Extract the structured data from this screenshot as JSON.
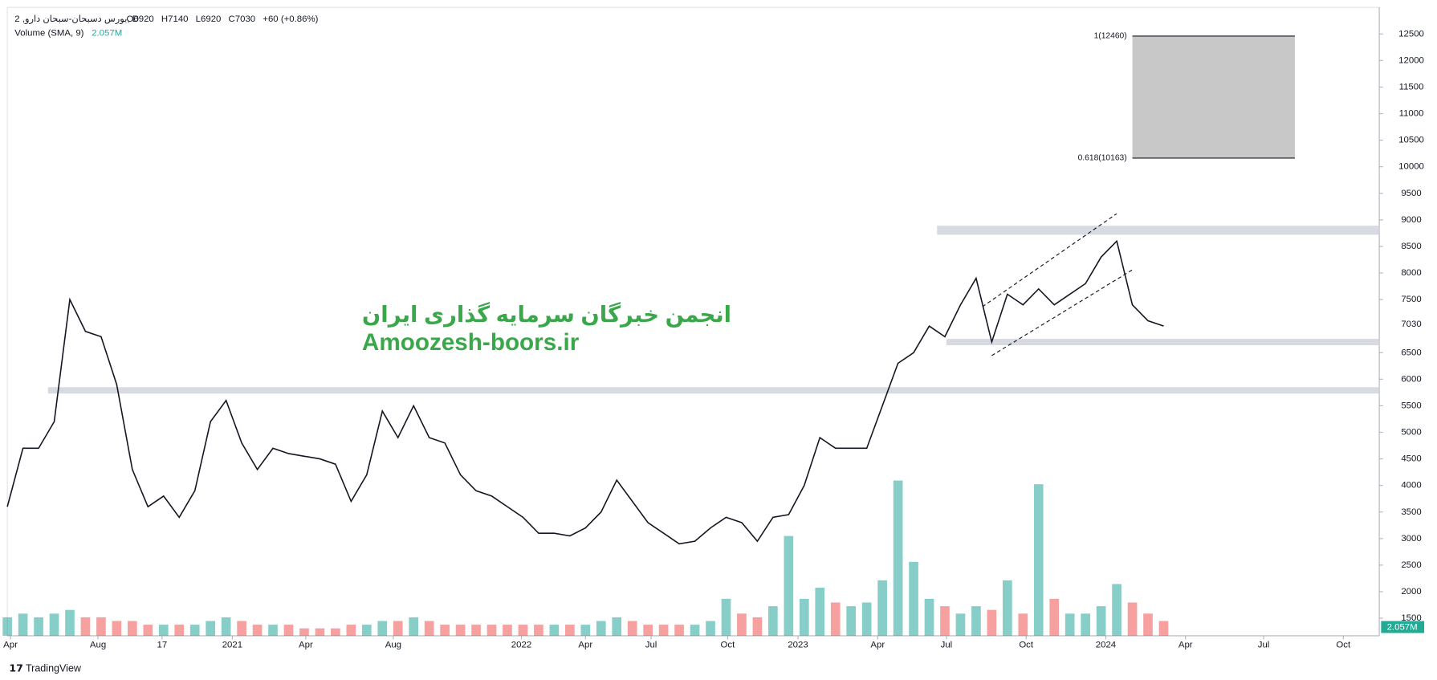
{
  "chart_data": {
    "type": "line",
    "symbol": "بورس دسبحان-سبحان دارو, 2, D",
    "ohlc": [
      "O6920",
      "H7140",
      "L6920",
      "C7030",
      "+60 (+0.86%)"
    ],
    "volume_title": "Volume (SMA, 9)",
    "volume_label": "2.057M",
    "watermark": [
      "انجمن خبرگان سرمایه گذاری ایران",
      "Amoozesh-boors.ir"
    ],
    "brand": "TradingView",
    "color": "#131722",
    "values": [
      3600,
      4700,
      4700,
      5200,
      7500,
      6900,
      6800,
      5900,
      4300,
      3600,
      3800,
      3400,
      3900,
      5200,
      5600,
      4800,
      4300,
      4700,
      4600,
      4550,
      4500,
      4400,
      3700,
      4200,
      5400,
      4900,
      5500,
      4900,
      4800,
      4200,
      3900,
      3800,
      3600,
      3400,
      3100,
      3100,
      3050,
      3200,
      3500,
      4100,
      3700,
      3300,
      3100,
      2900,
      2950,
      3200,
      3400,
      3300,
      2950,
      3400,
      3450,
      4000,
      4900,
      4700,
      4700,
      4700,
      5500,
      6300,
      6500,
      7000,
      6800,
      7400,
      7900,
      6700,
      7600,
      7400,
      7700,
      7400,
      7600,
      7800,
      8300,
      8600,
      7400,
      7100,
      7000
    ],
    "volume": [
      0.5,
      0.6,
      0.5,
      0.6,
      0.7,
      0.5,
      0.5,
      0.4,
      0.4,
      0.3,
      0.3,
      0.3,
      0.3,
      0.4,
      0.5,
      0.4,
      0.3,
      0.3,
      0.3,
      0.2,
      0.2,
      0.2,
      0.3,
      0.3,
      0.4,
      0.4,
      0.5,
      0.4,
      0.3,
      0.3,
      0.3,
      0.3,
      0.3,
      0.3,
      0.3,
      0.3,
      0.3,
      0.3,
      0.4,
      0.5,
      0.4,
      0.3,
      0.3,
      0.3,
      0.3,
      0.4,
      1.0,
      0.6,
      0.5,
      0.8,
      2.7,
      1.0,
      1.3,
      0.9,
      0.8,
      0.9,
      1.5,
      4.2,
      2.0,
      1.0,
      0.8,
      0.6,
      0.8,
      0.7,
      1.5,
      0.6,
      4.1,
      1.0,
      0.6,
      0.6,
      0.8,
      1.4,
      0.9,
      0.6,
      0.4
    ],
    "volume_ylim": [
      0,
      17
    ],
    "up_color": "#26a69a",
    "down_color": "#ef5350",
    "xlim": [
      0,
      87.8
    ],
    "xticks": [
      {
        "value": 0.2,
        "label": "Apr"
      },
      {
        "value": 5.8,
        "label": "Aug"
      },
      {
        "value": 9.9,
        "label": "17"
      },
      {
        "value": 14.4,
        "label": "2021"
      },
      {
        "value": 19.1,
        "label": "Apr"
      },
      {
        "value": 24.7,
        "label": "Aug"
      },
      {
        "value": 32.9,
        "label": "2022"
      },
      {
        "value": 37.0,
        "label": "Apr"
      },
      {
        "value": 41.2,
        "label": "Jul"
      },
      {
        "value": 46.1,
        "label": "Oct"
      },
      {
        "value": 50.6,
        "label": "2023"
      },
      {
        "value": 55.7,
        "label": "Apr"
      },
      {
        "value": 60.1,
        "label": "Jul"
      },
      {
        "value": 65.2,
        "label": "Oct"
      },
      {
        "value": 70.3,
        "label": "2024"
      },
      {
        "value": 75.4,
        "label": "Apr"
      },
      {
        "value": 80.4,
        "label": "Jul"
      },
      {
        "value": 85.5,
        "label": "Oct"
      }
    ],
    "ylim": [
      1170,
      13000
    ],
    "yticks": [
      1500,
      2000,
      2500,
      3000,
      3500,
      4000,
      4500,
      5000,
      5500,
      6000,
      6500,
      7500,
      8000,
      8500,
      9000,
      9500,
      10000,
      10500,
      11000,
      11500,
      12000,
      12500
    ],
    "last_price": 7030,
    "grid": false,
    "zones": [
      {
        "x0": 2.6,
        "low": 5730,
        "high": 5850
      },
      {
        "x0": 59.5,
        "low": 8720,
        "high": 8890
      },
      {
        "x0": 60.1,
        "low": 6640,
        "high": 6760
      }
    ],
    "fib": {
      "x0": 72,
      "x1": 82.4,
      "low": 10163,
      "high": 12460,
      "labels": [
        "0.618(10163)",
        "1(12460)"
      ]
    },
    "channel": [
      {
        "x": [
          63.0,
          72
        ],
        "y": [
          6445,
          8059
        ]
      },
      {
        "x": [
          62.4,
          71
        ],
        "y": [
          7364,
          9116
        ]
      }
    ]
  }
}
